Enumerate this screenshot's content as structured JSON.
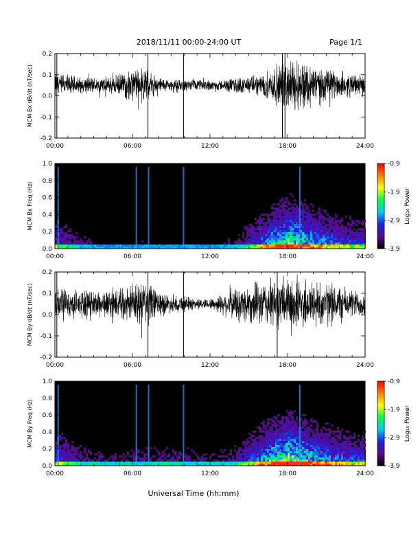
{
  "header": {
    "title": "2018/11/11  00:00-24:00 UT",
    "page": "Page 1/1"
  },
  "footer": {
    "xlabel": "Universal Time (hh:mm)"
  },
  "colors": {
    "colormap": [
      "#000000",
      "#5a0a8c",
      "#2020e0",
      "#00c8ff",
      "#00ff40",
      "#ffff00",
      "#ff8000",
      "#ff0000"
    ]
  },
  "chart_data": [
    {
      "type": "line",
      "title": "",
      "ylabel": "MCM Bx dB/dt (nT/sec)",
      "xlim": [
        0,
        24
      ],
      "ylim": [
        -0.2,
        0.2
      ],
      "x_ticks": [
        "00:00",
        "06:00",
        "12:00",
        "18:00",
        "24:00"
      ],
      "y_ticks": [
        "-0.2",
        "-0.1",
        "0.0",
        "0.1",
        "0.2"
      ],
      "y_tick_values": [
        -0.2,
        -0.1,
        0.0,
        0.1,
        0.2
      ],
      "baseline": 0.05,
      "envelope_hours": [
        0,
        1,
        2,
        3,
        4,
        5,
        6,
        7,
        8,
        9,
        10,
        11,
        12,
        13,
        14,
        15,
        16,
        17,
        18,
        19,
        20,
        21,
        22,
        23,
        24
      ],
      "envelope_amplitude": [
        0.05,
        0.04,
        0.03,
        0.03,
        0.03,
        0.04,
        0.06,
        0.06,
        0.03,
        0.02,
        0.02,
        0.02,
        0.02,
        0.02,
        0.03,
        0.03,
        0.04,
        0.07,
        0.09,
        0.1,
        0.08,
        0.06,
        0.05,
        0.04,
        0.04
      ],
      "spikes_hours": [
        0.15,
        7.2,
        9.95,
        17.6,
        17.8
      ]
    },
    {
      "type": "heatmap",
      "title": "",
      "ylabel": "MCM Bx Freq (Hz)",
      "xlim": [
        0,
        24
      ],
      "ylim": [
        0,
        1.0
      ],
      "x_ticks": [
        "00:00",
        "06:00",
        "12:00",
        "18:00",
        "24:00"
      ],
      "y_ticks": [
        "0.0",
        "0.2",
        "0.4",
        "0.6",
        "0.8",
        "1.0"
      ],
      "y_tick_values": [
        0,
        0.2,
        0.4,
        0.6,
        0.8,
        1.0
      ],
      "colorbar_label": "Log₁₀ Power",
      "colorbar_range": [
        -3.9,
        -0.9
      ],
      "colorbar_ticks": [
        "-0.9",
        "-1.9",
        "-2.9",
        "-3.9"
      ],
      "colorbar_tick_values": [
        -0.9,
        -1.9,
        -2.9,
        -3.9
      ],
      "activity_hours": [
        0,
        2,
        4,
        6,
        8,
        10,
        12,
        14,
        16,
        18,
        20,
        22,
        24
      ],
      "activity_level": [
        0.3,
        0.15,
        0.1,
        0.12,
        0.12,
        0.12,
        0.1,
        0.15,
        0.4,
        0.75,
        0.5,
        0.35,
        0.3
      ],
      "vertical_lines_hours": [
        0.25,
        6.3,
        7.25,
        9.95,
        18.95
      ]
    },
    {
      "type": "line",
      "title": "",
      "ylabel": "MCM By dB/dt (nT/sec)",
      "xlim": [
        0,
        24
      ],
      "ylim": [
        -0.2,
        0.2
      ],
      "x_ticks": [
        "00:00",
        "06:00",
        "12:00",
        "18:00",
        "24:00"
      ],
      "y_ticks": [
        "-0.2",
        "-0.1",
        "0.0",
        "0.1",
        "0.2"
      ],
      "y_tick_values": [
        -0.2,
        -0.1,
        0.0,
        0.1,
        0.2
      ],
      "baseline": 0.05,
      "envelope_hours": [
        0,
        1,
        2,
        3,
        4,
        5,
        6,
        7,
        8,
        9,
        10,
        11,
        12,
        13,
        14,
        15,
        16,
        17,
        18,
        19,
        20,
        21,
        22,
        23,
        24
      ],
      "envelope_amplitude": [
        0.06,
        0.05,
        0.05,
        0.05,
        0.05,
        0.05,
        0.07,
        0.09,
        0.05,
        0.03,
        0.03,
        0.02,
        0.02,
        0.04,
        0.06,
        0.07,
        0.08,
        0.09,
        0.09,
        0.1,
        0.09,
        0.08,
        0.07,
        0.05,
        0.05
      ],
      "spikes_hours": [
        0.15,
        7.2,
        9.95,
        17.2
      ]
    },
    {
      "type": "heatmap",
      "title": "",
      "ylabel": "MCM By Freq (Hz)",
      "xlim": [
        0,
        24
      ],
      "ylim": [
        0,
        1.0
      ],
      "x_ticks": [
        "00:00",
        "06:00",
        "12:00",
        "18:00",
        "24:00"
      ],
      "y_ticks": [
        "0.0",
        "0.2",
        "0.4",
        "0.6",
        "0.8",
        "1.0"
      ],
      "y_tick_values": [
        0,
        0.2,
        0.4,
        0.6,
        0.8,
        1.0
      ],
      "colorbar_label": "Log₁₀ Power",
      "colorbar_range": [
        -3.9,
        -0.9
      ],
      "colorbar_ticks": [
        "-0.9",
        "-1.9",
        "-2.9",
        "-3.9"
      ],
      "colorbar_tick_values": [
        -0.9,
        -1.9,
        -2.9,
        -3.9
      ],
      "activity_hours": [
        0,
        2,
        4,
        6,
        8,
        10,
        12,
        14,
        16,
        18,
        20,
        22,
        24
      ],
      "activity_level": [
        0.35,
        0.2,
        0.15,
        0.18,
        0.2,
        0.18,
        0.15,
        0.2,
        0.5,
        0.85,
        0.55,
        0.4,
        0.35
      ],
      "vertical_lines_hours": [
        0.25,
        6.3,
        7.25,
        9.95,
        18.95
      ]
    }
  ]
}
